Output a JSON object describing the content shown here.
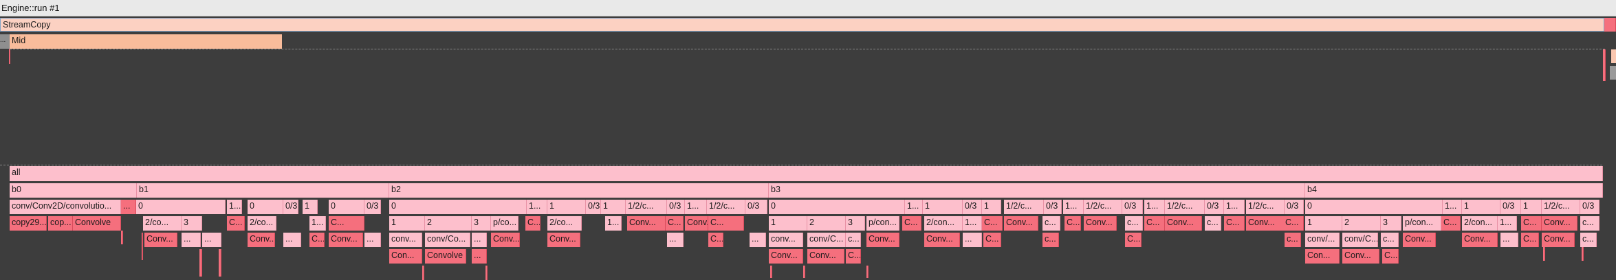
{
  "window": {
    "title": "Engine::run #1"
  },
  "lanes": {
    "stream_copy_label": "StreamCopy",
    "mid_label": "Mid",
    "mid_prefix": "..."
  },
  "flame": {
    "root_label": "all",
    "groups": [
      "b0",
      "b1",
      "b2",
      "b3",
      "b4"
    ],
    "colors": {
      "pink": "#fdbfcc",
      "red": "#f56f7d",
      "peach": "#f9bc9b",
      "salmon": "#fcd1c2",
      "background": "#3d3d3d"
    },
    "row1_labels": [
      "conv/Conv2D/convolutio...",
      "...",
      "0",
      "1...",
      "0",
      "0/3",
      "1",
      "0",
      "0/3",
      "0",
      "1...",
      "1",
      "0/3",
      "1",
      "1/2/c...",
      "0/3",
      "1...",
      "1/2/c...",
      "0/3",
      "0",
      "1...",
      "1",
      "0/3",
      "1",
      "1/2/c...",
      "0/3",
      "1...",
      "1/2/c...",
      "0/3",
      "1...",
      "1/2/c...",
      "0/3",
      "1...",
      "1/2/c...",
      "0/3",
      "0",
      "1...",
      "1",
      "0/3",
      "1",
      "1/2/c...",
      "0/3"
    ],
    "row2_labels": [
      "copy29...",
      "cop...",
      "Convolve",
      "2/co...",
      "3",
      "C...",
      "2/co...",
      "1...",
      "C...",
      "1",
      "2",
      "3",
      "p/co...",
      "C...",
      "2/co...",
      "1...",
      "C...",
      "Conv...",
      "C...",
      "Conv...",
      "C...",
      "1",
      "2",
      "3",
      "p/con...",
      "C...",
      "2/con...",
      "1...",
      "C...",
      "Conv...",
      "c...",
      "C...",
      "Conv...",
      "c...",
      "C...",
      "Conv...",
      "c...",
      "C...",
      "Conv...",
      "c...",
      "C...",
      "1",
      "2",
      "3",
      "p/con...",
      "C...",
      "2/con...",
      "1...",
      "C...",
      "Conv...",
      "c..."
    ],
    "row3_labels": [
      "Conv...",
      "...",
      "...",
      "Conv...",
      "...",
      "C...",
      "Conv...",
      "...",
      "conv...",
      "conv/Co...",
      "...",
      "Conv...",
      "Conv...",
      "...",
      "C...",
      "...",
      "conv...",
      "conv/C...",
      "c...",
      "Conv...",
      "Conv...",
      "...",
      "C...",
      "c...",
      "C...",
      "c...",
      "conv/...",
      "conv/C...",
      "c...",
      "Conv...",
      "Conv...",
      "...",
      "C...",
      "Conv...",
      "c..."
    ],
    "row4_labels": [
      "Con...",
      "Convolve",
      "...",
      "Conv...",
      "Conv...",
      "C...",
      "Con...",
      "Conv...",
      "C..."
    ]
  }
}
